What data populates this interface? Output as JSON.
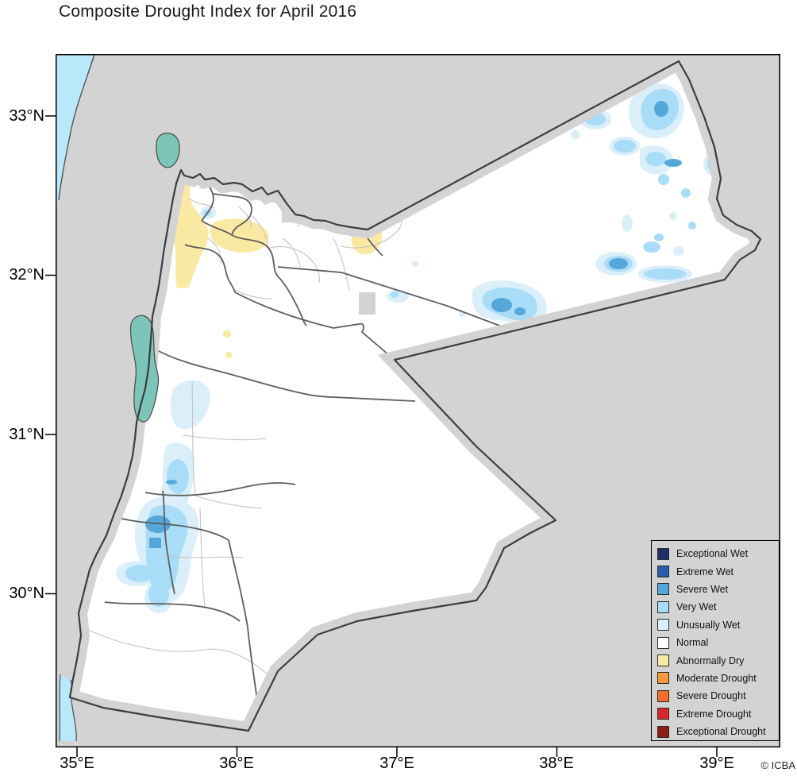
{
  "title": "Composite Drought Index for April 2016",
  "credit": "© ICBA",
  "map": {
    "region": "Jordan",
    "x_axis": {
      "ticks": [
        "35°E",
        "36°E",
        "37°E",
        "38°E",
        "39°E"
      ]
    },
    "y_axis": {
      "ticks": [
        "33°N",
        "32°N",
        "31°N",
        "30°N"
      ]
    }
  },
  "legend": {
    "items": [
      {
        "label": "Exceptional Wet",
        "color": "exceptional_wet"
      },
      {
        "label": "Extreme Wet",
        "color": "extreme_wet"
      },
      {
        "label": "Severe Wet",
        "color": "severe_wet"
      },
      {
        "label": "Very Wet",
        "color": "very_wet"
      },
      {
        "label": "Unusually Wet",
        "color": "unusually_wet"
      },
      {
        "label": "Normal",
        "color": "normal"
      },
      {
        "label": "Abnormally Dry",
        "color": "abnormally_dry"
      },
      {
        "label": "Moderate Drought",
        "color": "moderate_drought"
      },
      {
        "label": "Severe Drought",
        "color": "severe_drought"
      },
      {
        "label": "Extreme Drought",
        "color": "extreme_drought"
      },
      {
        "label": "Exceptional Drought",
        "color": "exceptional_drought"
      }
    ]
  },
  "colors": {
    "exceptional_wet": "#1e3166",
    "extreme_wet": "#2a5cab",
    "severe_wet": "#55a7da",
    "very_wet": "#a9dcf6",
    "unusually_wet": "#daeffa",
    "normal": "#ffffff",
    "abnormally_dry": "#fae9a3",
    "moderate_drought": "#f6983c",
    "severe_drought": "#f16f2d",
    "extreme_drought": "#d7282d",
    "exceptional_drought": "#8e1d15",
    "land_outside": "#d3d3d3",
    "sea": "#b9e8f8",
    "lake": "#7cc5b8",
    "coastline": "#4a4a4a",
    "country_border": "#3d3d3d",
    "admin_border": "#5d5d5d",
    "subadmin_border": "#c3c3c3",
    "frame": "#000000"
  }
}
